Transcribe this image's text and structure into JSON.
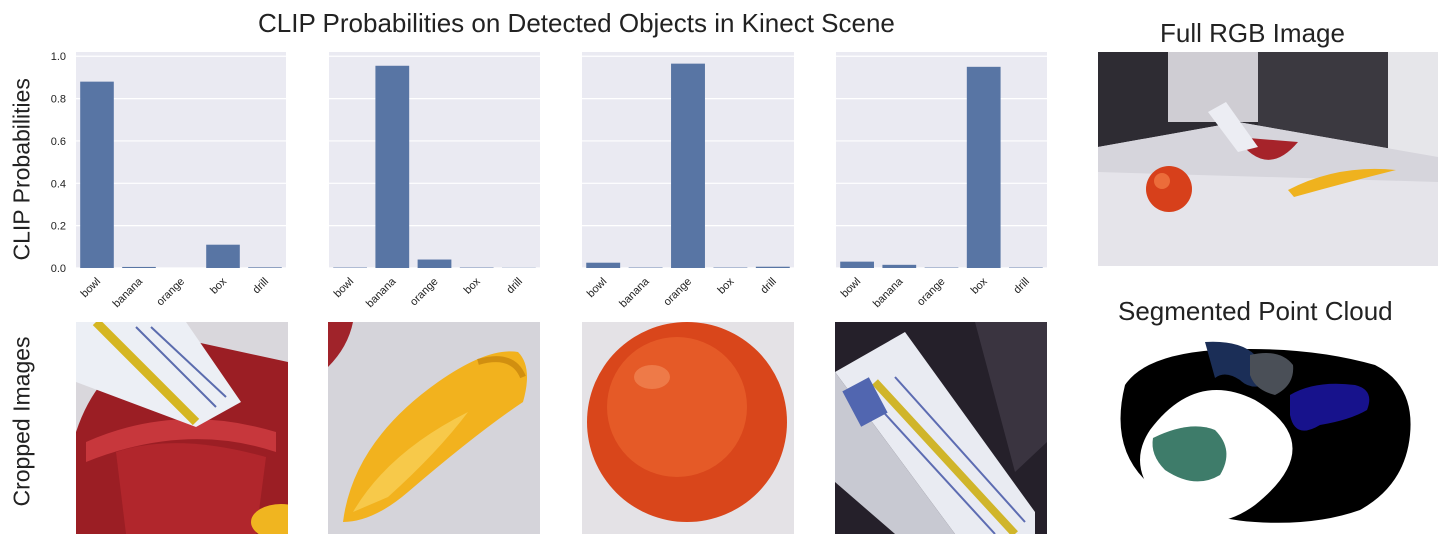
{
  "figure": {
    "main_title": "CLIP Probabilities on Detected Objects in Kinect Scene",
    "row1_ylabel": "CLIP Probabilities",
    "row2_ylabel": "Cropped Images",
    "rgb_title": "Full RGB Image",
    "cloud_title": "Segmented Point Cloud"
  },
  "colors": {
    "bar": "#5875a4",
    "axes_bg": "#eaeaf2",
    "grid": "#ffffff",
    "bowl_red": "#b3242a",
    "banana_yellow": "#f2b51e",
    "orange": "#e2501f",
    "cloud_green": "#3e7c6a",
    "cloud_navy": "#1b2e57",
    "cloud_grey": "#4a4f57",
    "cloud_blue": "#17128c"
  },
  "chart_data": [
    {
      "type": "bar",
      "categories": [
        "bowl",
        "banana",
        "orange",
        "box",
        "drill"
      ],
      "values": [
        0.88,
        0.005,
        0.0,
        0.11,
        0.003
      ],
      "ylim": [
        0,
        1.02
      ],
      "yticks": [
        "0.0",
        "0.2",
        "0.4",
        "0.6",
        "0.8",
        "1.0"
      ],
      "grid": true
    },
    {
      "type": "bar",
      "categories": [
        "bowl",
        "banana",
        "orange",
        "box",
        "drill"
      ],
      "values": [
        0.002,
        0.955,
        0.04,
        0.002,
        0.001
      ],
      "ylim": [
        0,
        1.02
      ],
      "grid": true
    },
    {
      "type": "bar",
      "categories": [
        "bowl",
        "banana",
        "orange",
        "box",
        "drill"
      ],
      "values": [
        0.025,
        0.002,
        0.965,
        0.002,
        0.006
      ],
      "ylim": [
        0,
        1.02
      ],
      "grid": true
    },
    {
      "type": "bar",
      "categories": [
        "bowl",
        "banana",
        "orange",
        "box",
        "drill"
      ],
      "values": [
        0.03,
        0.015,
        0.002,
        0.95,
        0.002
      ],
      "ylim": [
        0,
        1.02
      ],
      "grid": true
    }
  ]
}
